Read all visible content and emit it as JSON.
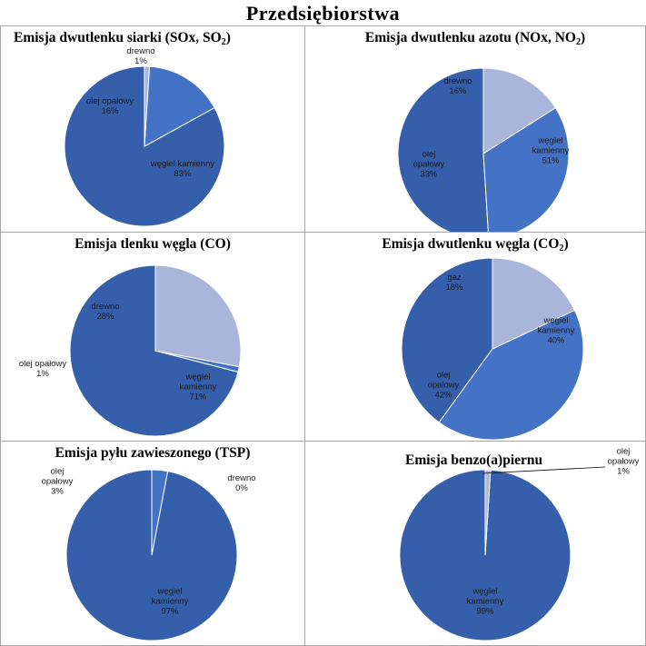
{
  "page_title": "Przedsiębiorstwa",
  "chart_data": [
    {
      "type": "pie",
      "title": "Emisja dwutlenku siarki (SOx, SO",
      "title_sub": "2",
      "title_end": ")",
      "slices": [
        {
          "name": "węgiel kamienny",
          "value": 83,
          "label": "83%",
          "color": "#355FAA"
        },
        {
          "name": "olej opałowy",
          "value": 16,
          "label": "16%",
          "color": "#4472C4"
        },
        {
          "name": "drewno",
          "value": 1,
          "label": "1%",
          "color": "#A9B5DA"
        }
      ]
    },
    {
      "type": "pie",
      "title": "Emisja dwutlenku azotu  (NOx, NO",
      "title_sub": "2",
      "title_end": ")",
      "slices": [
        {
          "name": "węgiel kamienny",
          "value": 51,
          "label": "51%",
          "color": "#355FAA"
        },
        {
          "name": "olej opałowy",
          "value": 33,
          "label": "33%",
          "color": "#4472C4"
        },
        {
          "name": "drewno",
          "value": 16,
          "label": "16%",
          "color": "#A9B5DA"
        }
      ]
    },
    {
      "type": "pie",
      "title": "Emisja tlenku węgla (CO)",
      "title_sub": "",
      "title_end": "",
      "slices": [
        {
          "name": "węgiel kamienny",
          "value": 71,
          "label": "71%",
          "color": "#355FAA"
        },
        {
          "name": "olej opałowy",
          "value": 1,
          "label": "1%",
          "color": "#4472C4"
        },
        {
          "name": "drewno",
          "value": 28,
          "label": "28%",
          "color": "#A9B5DA"
        }
      ]
    },
    {
      "type": "pie",
      "title": "Emisja dwutlenku węgla (CO",
      "title_sub": "2",
      "title_end": ")",
      "slices": [
        {
          "name": "węgiel kamienny",
          "value": 40,
          "label": "40%",
          "color": "#355FAA"
        },
        {
          "name": "olej opałowy",
          "value": 42,
          "label": "42%",
          "color": "#4472C4"
        },
        {
          "name": "gaz",
          "value": 18,
          "label": "18%",
          "color": "#A9B5DA"
        }
      ]
    },
    {
      "type": "pie",
      "title": "Emisja pyłu zawieszonego (TSP)",
      "title_sub": "",
      "title_end": "",
      "slices": [
        {
          "name": "węgiel kamienny",
          "value": 97,
          "label": "97%",
          "color": "#355FAA"
        },
        {
          "name": "olej opałowy",
          "value": 3,
          "label": "3%",
          "color": "#4472C4"
        },
        {
          "name": "drewno",
          "value": 0,
          "label": "0%",
          "color": "#A9B5DA"
        }
      ]
    },
    {
      "type": "pie",
      "title": "Emisja benzo(a)piernu",
      "title_sub": "",
      "title_end": "",
      "slices": [
        {
          "name": "węgiel kamienny",
          "value": 99,
          "label": "99%",
          "color": "#355FAA"
        },
        {
          "name": "olej opałowy",
          "value": 1,
          "label": "1%",
          "color": "#A9B5DA"
        }
      ]
    }
  ]
}
